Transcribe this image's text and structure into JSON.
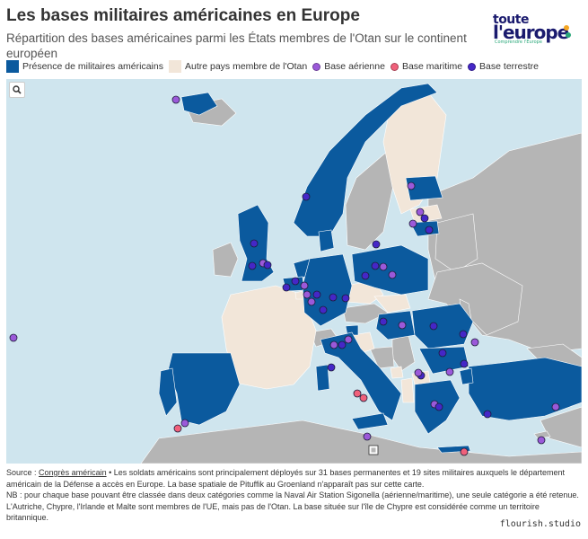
{
  "title": "Les bases militaires américaines en Europe",
  "subtitle": "Répartition des bases américaines parmi les États membres de l'Otan sur le continent européen",
  "logo": {
    "line1": "toute",
    "line2": "l'europe",
    "tagline": "Comprendre l'Europe"
  },
  "legend": [
    {
      "label": "Présence de militaires américains",
      "shape": "rect",
      "color": "#0b5a9e"
    },
    {
      "label": "Autre pays membre de l'Otan",
      "shape": "rect",
      "color": "#f2e6d9"
    },
    {
      "label": "Base aérienne",
      "shape": "dot",
      "color": "#9b59d9"
    },
    {
      "label": "Base maritime",
      "shape": "dot",
      "color": "#f0607a"
    },
    {
      "label": "Base terrestre",
      "shape": "dot",
      "color": "#4527c7"
    }
  ],
  "colors": {
    "presence": "#0b5a9e",
    "other_nato": "#f2e6d9",
    "non_nato": "#b5b5b5",
    "sea": "#cfe5ee",
    "air": "#9b59d9",
    "sea_base": "#f0607a",
    "land": "#4527c7"
  },
  "notes": {
    "source_label": "Source :",
    "source_link": "Congrès américain",
    "source_text": " • Les soldats américains sont principalement déployés sur 31 bases permanentes et 19 sites militaires auxquels le département américain de la Défense a accès en Europe. La base spatiale de Pituffik au Groenland n'apparaît pas sur cette carte.",
    "nb": "NB : pour chaque base pouvant être classée dans deux catégories comme la Naval Air Station Sigonella (aérienne/maritime), une seule catégorie a été retenue.",
    "extra": "L'Autriche, Chypre, l'Irlande et Malte sont membres de l'UE, mais pas de l'Otan. La base située sur l'île de Chypre est considérée comme un territoire britannique."
  },
  "credit": "flourish.studio"
}
